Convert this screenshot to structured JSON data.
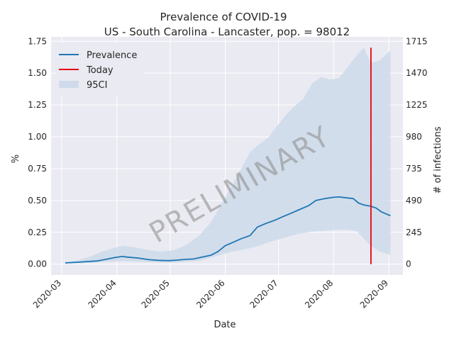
{
  "chart_data": {
    "type": "line",
    "title": "Prevalence of COVID-19",
    "subtitle": "US - South Carolina - Lancaster, pop. = 98012",
    "xlabel": "Date",
    "ylabel": "%",
    "ylabel_right": "# of infections",
    "xlim": [
      "2020-02-24",
      "2020-09-09"
    ],
    "ylim": [
      -0.085,
      1.785
    ],
    "x_ticks": [
      "2020-03",
      "2020-04",
      "2020-05",
      "2020-06",
      "2020-07",
      "2020-08",
      "2020-09"
    ],
    "y_ticks": [
      "0.00",
      "0.25",
      "0.50",
      "0.75",
      "1.00",
      "1.25",
      "1.50",
      "1.75"
    ],
    "y_right_ticks": [
      "0",
      "245",
      "490",
      "735",
      "980",
      "1225",
      "1470",
      "1715"
    ],
    "watermark": "PRELIMINARY",
    "grid": true,
    "legend_position": "top-left",
    "legend": [
      {
        "label": "Prevalence",
        "kind": "line",
        "color": "#1f77b4"
      },
      {
        "label": "Today",
        "kind": "line",
        "color": "#e8000b"
      },
      {
        "label": "95CI",
        "kind": "patch",
        "color": "#cfdbea"
      }
    ],
    "series": [
      {
        "name": "Prevalence",
        "color": "#1f77b4",
        "x": [
          "2020-03-03",
          "2020-03-10",
          "2020-03-17",
          "2020-03-21",
          "2020-03-26",
          "2020-03-31",
          "2020-04-04",
          "2020-04-07",
          "2020-04-13",
          "2020-04-19",
          "2020-04-24",
          "2020-04-28",
          "2020-05-01",
          "2020-05-05",
          "2020-05-10",
          "2020-05-14",
          "2020-05-19",
          "2020-05-24",
          "2020-05-28",
          "2020-06-01",
          "2020-06-06",
          "2020-06-10",
          "2020-06-15",
          "2020-06-19",
          "2020-06-24",
          "2020-06-29",
          "2020-07-03",
          "2020-07-08",
          "2020-07-13",
          "2020-07-18",
          "2020-07-22",
          "2020-07-27",
          "2020-08-01",
          "2020-08-04",
          "2020-08-07",
          "2020-08-12",
          "2020-08-15",
          "2020-08-18",
          "2020-08-22",
          "2020-08-25",
          "2020-08-28",
          "2020-09-02"
        ],
        "y": [
          0.01,
          0.015,
          0.022,
          0.025,
          0.038,
          0.052,
          0.06,
          0.055,
          0.048,
          0.035,
          0.03,
          0.028,
          0.028,
          0.032,
          0.038,
          0.04,
          0.055,
          0.07,
          0.1,
          0.145,
          0.175,
          0.2,
          0.225,
          0.29,
          0.32,
          0.345,
          0.37,
          0.4,
          0.43,
          0.46,
          0.5,
          0.515,
          0.525,
          0.528,
          0.523,
          0.515,
          0.48,
          0.465,
          0.455,
          0.44,
          0.41,
          0.38
        ]
      }
    ],
    "band": {
      "name": "95CI",
      "color": "#cfdbea",
      "x": [
        "2020-03-03",
        "2020-03-10",
        "2020-03-17",
        "2020-03-24",
        "2020-03-31",
        "2020-04-05",
        "2020-04-12",
        "2020-04-19",
        "2020-04-26",
        "2020-05-03",
        "2020-05-10",
        "2020-05-17",
        "2020-05-24",
        "2020-05-31",
        "2020-06-05",
        "2020-06-10",
        "2020-06-15",
        "2020-06-20",
        "2020-06-25",
        "2020-06-30",
        "2020-07-05",
        "2020-07-10",
        "2020-07-15",
        "2020-07-20",
        "2020-07-25",
        "2020-07-30",
        "2020-08-04",
        "2020-08-09",
        "2020-08-14",
        "2020-08-18",
        "2020-08-22",
        "2020-08-27",
        "2020-09-02"
      ],
      "lower": [
        0,
        0.005,
        0.01,
        0.018,
        0.02,
        0.025,
        0.02,
        0.015,
        0.012,
        0.012,
        0.018,
        0.025,
        0.05,
        0.08,
        0.1,
        0.11,
        0.125,
        0.145,
        0.17,
        0.19,
        0.21,
        0.23,
        0.245,
        0.255,
        0.26,
        0.265,
        0.27,
        0.27,
        0.26,
        0.2,
        0.14,
        0.1,
        0.07
      ],
      "upper": [
        0.01,
        0.03,
        0.06,
        0.1,
        0.13,
        0.145,
        0.13,
        0.11,
        0.1,
        0.11,
        0.15,
        0.22,
        0.33,
        0.5,
        0.62,
        0.75,
        0.88,
        0.94,
        0.99,
        1.08,
        1.17,
        1.24,
        1.3,
        1.42,
        1.47,
        1.45,
        1.46,
        1.55,
        1.64,
        1.7,
        1.58,
        1.6,
        1.68
      ]
    },
    "today": {
      "label": "Today",
      "x": "2020-08-22",
      "y_range": [
        0.0,
        1.7
      ],
      "color": "#e8000b"
    }
  }
}
